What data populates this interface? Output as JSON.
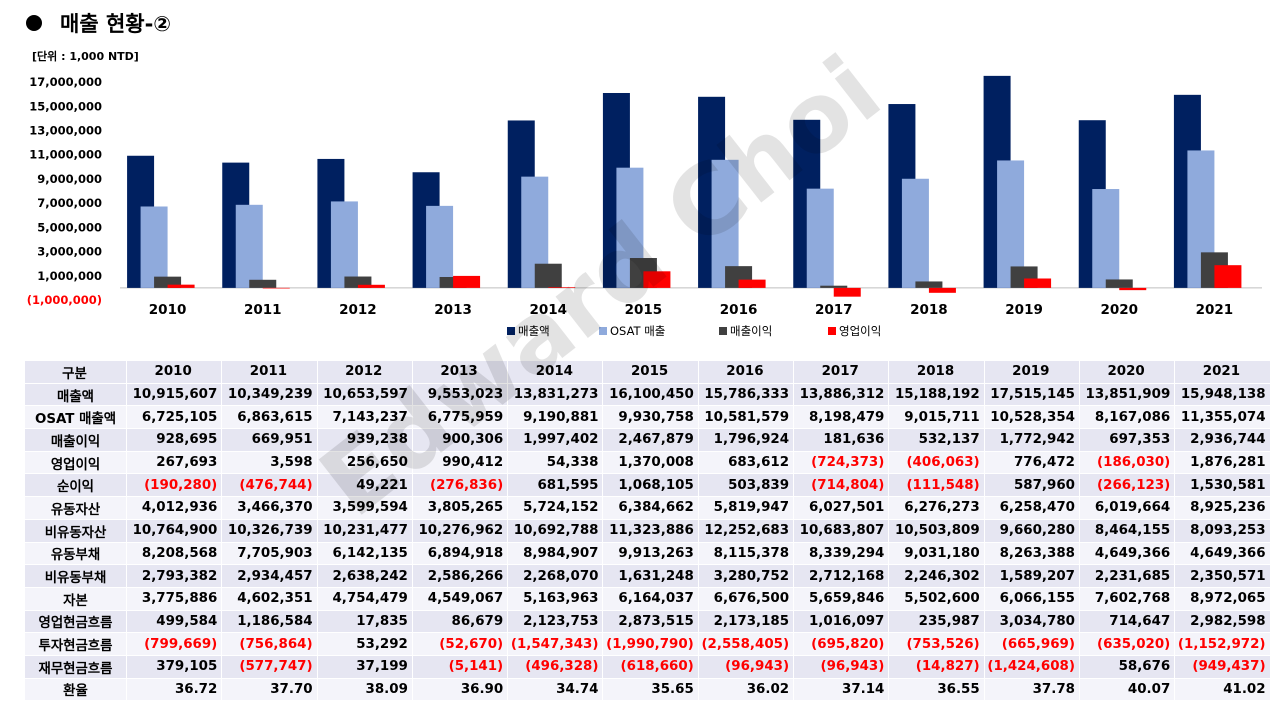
{
  "header": {
    "title": "매출 현황-②",
    "unit": "[단위 : 1,000 NTD]"
  },
  "watermark": "Edward Choi",
  "colors": {
    "revenue": "#002060",
    "osat": "#8faadc",
    "gross_profit": "#404040",
    "operating_profit": "#ff0000",
    "negative_text": "#ff0000",
    "row_bg_odd": "#e6e6f2",
    "row_bg_even": "#f4f4fa"
  },
  "chart_data": {
    "type": "bar",
    "categories": [
      "2010",
      "2011",
      "2012",
      "2013",
      "2014",
      "2015",
      "2016",
      "2017",
      "2018",
      "2019",
      "2020",
      "2021"
    ],
    "series": [
      {
        "name": "매출액",
        "values": [
          10915607,
          10349239,
          10653597,
          9553023,
          13831273,
          16100450,
          15786333,
          13886312,
          15188192,
          17515145,
          13851909,
          15948138
        ]
      },
      {
        "name": "OSAT 매출",
        "values": [
          6725105,
          6863615,
          7143237,
          6775959,
          9190881,
          9930758,
          10581579,
          8198479,
          9015711,
          10528354,
          8167086,
          11355074
        ]
      },
      {
        "name": "매출이익",
        "values": [
          928695,
          669951,
          939238,
          900306,
          1997402,
          2467879,
          1796924,
          181636,
          532137,
          1772942,
          697353,
          2936744
        ]
      },
      {
        "name": "영업이익",
        "values": [
          267693,
          3598,
          256650,
          990412,
          54338,
          1370008,
          683612,
          -724373,
          -406063,
          776472,
          -186030,
          1876281
        ]
      }
    ],
    "y_ticks": [
      -1000000,
      1000000,
      3000000,
      5000000,
      7000000,
      9000000,
      11000000,
      13000000,
      15000000,
      17000000
    ],
    "y_tick_labels": [
      "(1,000,000)",
      "1,000,000",
      "3,000,000",
      "5,000,000",
      "7,000,000",
      "9,000,000",
      "11,000,000",
      "13,000,000",
      "15,000,000",
      "17,000,000"
    ],
    "ylim": [
      -1000000,
      18000000
    ],
    "legend_position": "bottom",
    "grid": false
  },
  "table": {
    "header_label": "구분",
    "years": [
      "2010",
      "2011",
      "2012",
      "2013",
      "2014",
      "2015",
      "2016",
      "2017",
      "2018",
      "2019",
      "2020",
      "2021"
    ],
    "rows": [
      {
        "label": "매출액",
        "values": [
          "10,915,607",
          "10,349,239",
          "10,653,597",
          "9,553,023",
          "13,831,273",
          "16,100,450",
          "15,786,333",
          "13,886,312",
          "15,188,192",
          "17,515,145",
          "13,851,909",
          "15,948,138"
        ]
      },
      {
        "label": "OSAT 매출액",
        "values": [
          "6,725,105",
          "6,863,615",
          "7,143,237",
          "6,775,959",
          "9,190,881",
          "9,930,758",
          "10,581,579",
          "8,198,479",
          "9,015,711",
          "10,528,354",
          "8,167,086",
          "11,355,074"
        ]
      },
      {
        "label": "매출이익",
        "values": [
          "928,695",
          "669,951",
          "939,238",
          "900,306",
          "1,997,402",
          "2,467,879",
          "1,796,924",
          "181,636",
          "532,137",
          "1,772,942",
          "697,353",
          "2,936,744"
        ]
      },
      {
        "label": "영업이익",
        "values": [
          "267,693",
          "3,598",
          "256,650",
          "990,412",
          "54,338",
          "1,370,008",
          "683,612",
          "(724,373)",
          "(406,063)",
          "776,472",
          "(186,030)",
          "1,876,281"
        ]
      },
      {
        "label": "순이익",
        "values": [
          "(190,280)",
          "(476,744)",
          "49,221",
          "(276,836)",
          "681,595",
          "1,068,105",
          "503,839",
          "(714,804)",
          "(111,548)",
          "587,960",
          "(266,123)",
          "1,530,581"
        ]
      },
      {
        "label": "유동자산",
        "values": [
          "4,012,936",
          "3,466,370",
          "3,599,594",
          "3,805,265",
          "5,724,152",
          "6,384,662",
          "5,819,947",
          "6,027,501",
          "6,276,273",
          "6,258,470",
          "6,019,664",
          "8,925,236"
        ]
      },
      {
        "label": "비유동자산",
        "values": [
          "10,764,900",
          "10,326,739",
          "10,231,477",
          "10,276,962",
          "10,692,788",
          "11,323,886",
          "12,252,683",
          "10,683,807",
          "10,503,809",
          "9,660,280",
          "8,464,155",
          "8,093,253"
        ]
      },
      {
        "label": "유동부채",
        "values": [
          "8,208,568",
          "7,705,903",
          "6,142,135",
          "6,894,918",
          "8,984,907",
          "9,913,263",
          "8,115,378",
          "8,339,294",
          "9,031,180",
          "8,263,388",
          "4,649,366",
          "4,649,366"
        ]
      },
      {
        "label": "비유동부채",
        "values": [
          "2,793,382",
          "2,934,457",
          "2,638,242",
          "2,586,266",
          "2,268,070",
          "1,631,248",
          "3,280,752",
          "2,712,168",
          "2,246,302",
          "1,589,207",
          "2,231,685",
          "2,350,571"
        ]
      },
      {
        "label": "자본",
        "values": [
          "3,775,886",
          "4,602,351",
          "4,754,479",
          "4,549,067",
          "5,163,963",
          "6,164,037",
          "6,676,500",
          "5,659,846",
          "5,502,600",
          "6,066,155",
          "7,602,768",
          "8,972,065"
        ]
      },
      {
        "label": "영업현금흐름",
        "values": [
          "499,584",
          "1,186,584",
          "17,835",
          "86,679",
          "2,123,753",
          "2,873,515",
          "2,173,185",
          "1,016,097",
          "235,987",
          "3,034,780",
          "714,647",
          "2,982,598"
        ]
      },
      {
        "label": "투자현금흐름",
        "values": [
          "(799,669)",
          "(756,864)",
          "53,292",
          "(52,670)",
          "(1,547,343)",
          "(1,990,790)",
          "(2,558,405)",
          "(695,820)",
          "(753,526)",
          "(665,969)",
          "(635,020)",
          "(1,152,972)"
        ]
      },
      {
        "label": "재무현금흐름",
        "values": [
          "379,105",
          "(577,747)",
          "37,199",
          "(5,141)",
          "(496,328)",
          "(618,660)",
          "(96,943)",
          "(96,943)",
          "(14,827)",
          "(1,424,608)",
          "58,676",
          "(949,437)"
        ]
      },
      {
        "label": "환율",
        "values": [
          "36.72",
          "37.70",
          "38.09",
          "36.90",
          "34.74",
          "35.65",
          "36.02",
          "37.14",
          "36.55",
          "37.78",
          "40.07",
          "41.02"
        ]
      }
    ]
  }
}
